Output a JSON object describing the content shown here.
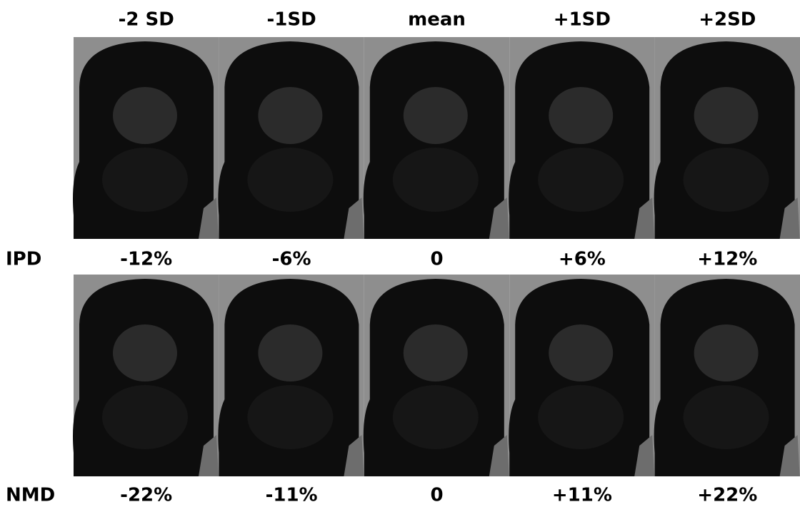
{
  "columns": [
    "-2 SD",
    "-1SD",
    "mean",
    "+1SD",
    "+2SD"
  ],
  "rows": [
    {
      "label": "IPD",
      "values": [
        "-12%",
        "-6%",
        "0",
        "+6%",
        "+12%"
      ]
    },
    {
      "label": "NMD",
      "values": [
        "-22%",
        "-11%",
        "0",
        "+11%",
        "+22%"
      ]
    }
  ]
}
